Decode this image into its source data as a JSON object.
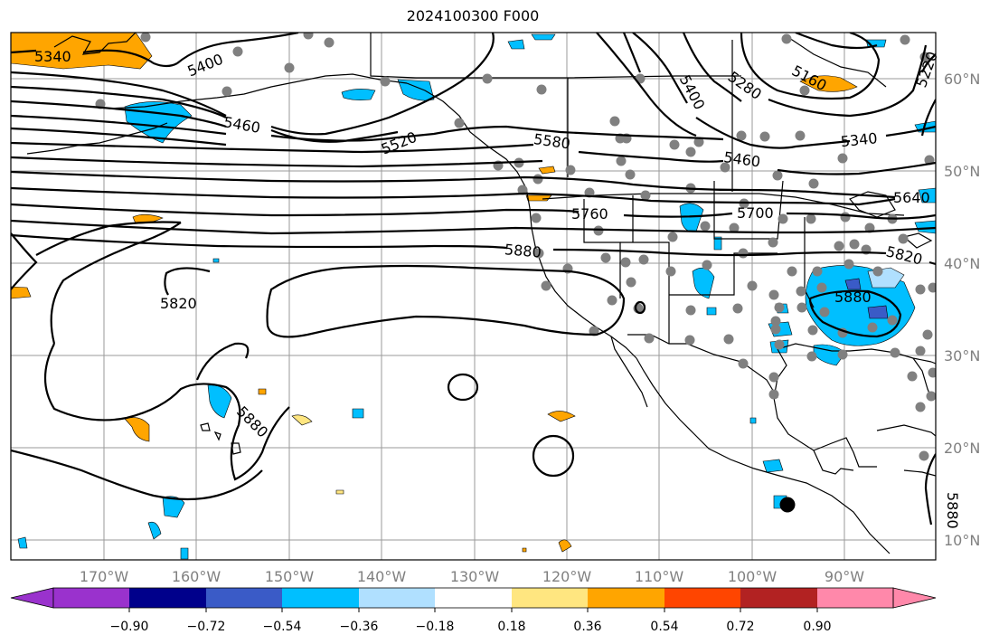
{
  "title": "2024100300 F000",
  "lat_labels": [
    "60°N",
    "50°N",
    "40°N",
    "30°N",
    "20°N",
    "10°N"
  ],
  "lon_labels": [
    "170°W",
    "160°W",
    "150°W",
    "140°W",
    "130°W",
    "120°W",
    "110°W",
    "100°W",
    "90°W"
  ],
  "contour_labels": [
    "5340",
    "5400",
    "5460",
    "5520",
    "5580",
    "5760",
    "5880",
    "5820",
    "5880",
    "5400",
    "5280",
    "5160",
    "5220",
    "5340",
    "5460",
    "5700",
    "5640",
    "5820",
    "5880",
    "5880"
  ],
  "colorbar": {
    "tick_labels": [
      "−0.90",
      "−0.72",
      "−0.54",
      "−0.36",
      "−0.18",
      "0.18",
      "0.36",
      "0.54",
      "0.72",
      "0.90"
    ],
    "colors": [
      "#9a32cd",
      "#00008b",
      "#3a5bc7",
      "#00bfff",
      "#b0e0ff",
      "#ffffff",
      "#ffe680",
      "#ffa500",
      "#ff4500",
      "#b22222",
      "#ff88aa",
      "#ff88aa"
    ]
  }
}
